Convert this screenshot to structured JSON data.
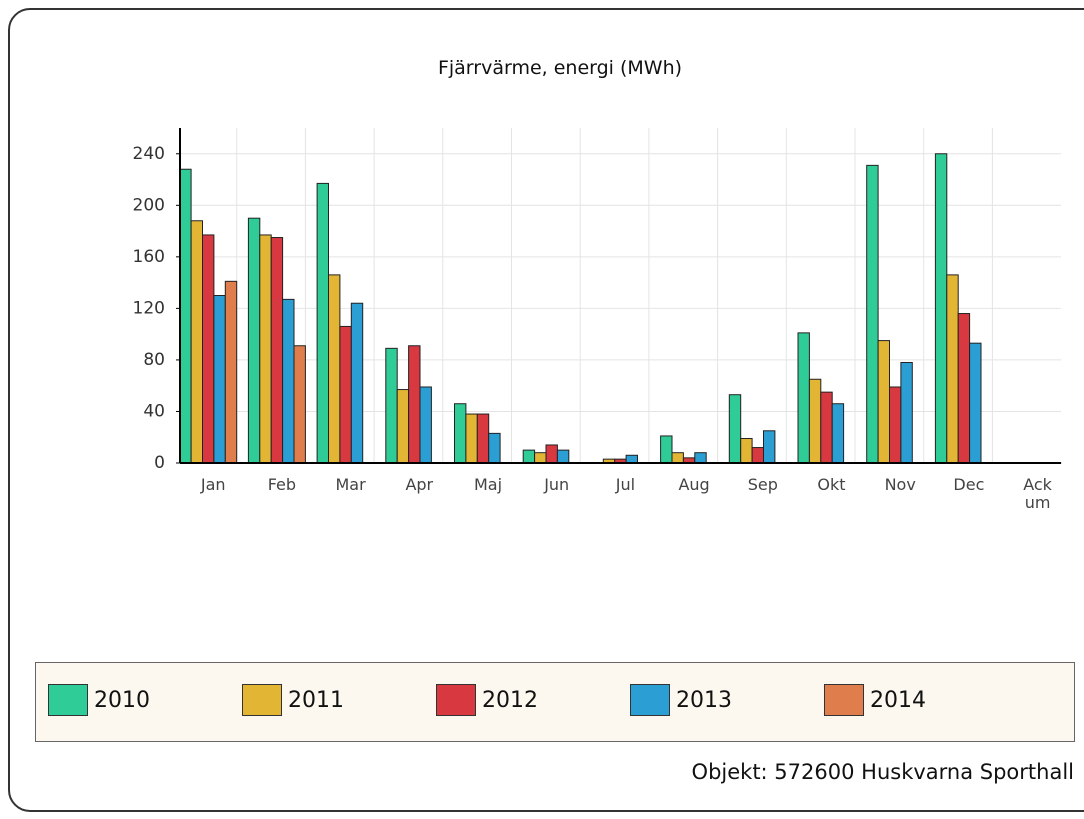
{
  "chart_data": {
    "type": "bar",
    "title": "Fjärrvärme, energi (MWh)",
    "categories": [
      "Jan",
      "Feb",
      "Mar",
      "Apr",
      "Maj",
      "Jun",
      "Jul",
      "Aug",
      "Sep",
      "Okt",
      "Nov",
      "Dec",
      "Ackum"
    ],
    "series": [
      {
        "name": "2010",
        "color": "#2fcc98",
        "values": [
          228,
          190,
          217,
          89,
          46,
          10,
          null,
          21,
          53,
          101,
          231,
          240,
          null
        ]
      },
      {
        "name": "2011",
        "color": "#e3b534",
        "values": [
          188,
          177,
          146,
          57,
          38,
          8,
          3,
          8,
          19,
          65,
          95,
          146,
          null
        ]
      },
      {
        "name": "2012",
        "color": "#d8383f",
        "values": [
          177,
          175,
          106,
          91,
          38,
          14,
          3,
          4,
          12,
          55,
          59,
          116,
          null
        ]
      },
      {
        "name": "2013",
        "color": "#2b9fd4",
        "values": [
          130,
          127,
          124,
          59,
          23,
          10,
          6,
          8,
          25,
          46,
          78,
          93,
          null
        ]
      },
      {
        "name": "2014",
        "color": "#e07d4c",
        "values": [
          141,
          91,
          null,
          null,
          null,
          null,
          null,
          null,
          null,
          null,
          null,
          null,
          null
        ]
      }
    ],
    "ylim": [
      0,
      260
    ],
    "yticks": [
      0,
      40,
      80,
      120,
      160,
      200,
      240
    ],
    "grid": true,
    "footer": "Objekt: 572600 Huskvarna Sporthall"
  }
}
